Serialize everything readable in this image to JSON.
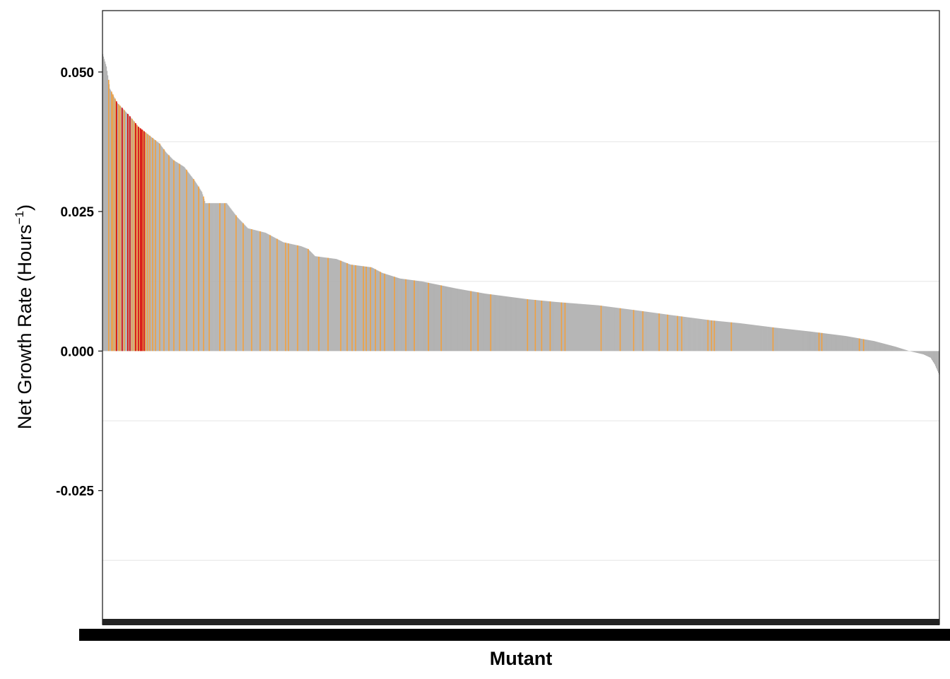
{
  "chart_data": {
    "type": "bar",
    "title": "",
    "xlabel": "Mutant",
    "ylabel": {
      "text": "Net Growth Rate (Hours",
      "superscript": "−1",
      "close": ")"
    },
    "ylim": [
      -0.049,
      0.061
    ],
    "yticks": [
      0.05,
      0.025,
      0.0,
      -0.025
    ],
    "ytick_labels": [
      "0.050",
      "0.025",
      "0.000",
      "-0.025"
    ],
    "grid": {
      "major_y": [
        0.05,
        0.025,
        0.0,
        -0.025
      ],
      "minor_y": [
        0.0375,
        0.0125,
        -0.0125,
        -0.0375
      ]
    },
    "sorted": "descending",
    "n_bars": 1183,
    "value_profile": [
      [
        0,
        0.0532
      ],
      [
        5,
        0.051
      ],
      [
        10,
        0.047
      ],
      [
        20,
        0.0445
      ],
      [
        30,
        0.0432
      ],
      [
        40,
        0.0418
      ],
      [
        50,
        0.0402
      ],
      [
        60,
        0.0392
      ],
      [
        70,
        0.0382
      ],
      [
        80,
        0.0372
      ],
      [
        90,
        0.0355
      ],
      [
        100,
        0.0342
      ],
      [
        115,
        0.033
      ],
      [
        130,
        0.0305
      ],
      [
        140,
        0.0285
      ],
      [
        145,
        0.0265
      ],
      [
        175,
        0.0265
      ],
      [
        190,
        0.024
      ],
      [
        205,
        0.022
      ],
      [
        230,
        0.0212
      ],
      [
        255,
        0.0195
      ],
      [
        280,
        0.0188
      ],
      [
        290,
        0.0183
      ],
      [
        300,
        0.017
      ],
      [
        330,
        0.0165
      ],
      [
        350,
        0.0155
      ],
      [
        380,
        0.015
      ],
      [
        395,
        0.014
      ],
      [
        420,
        0.013
      ],
      [
        450,
        0.0125
      ],
      [
        500,
        0.0112
      ],
      [
        540,
        0.0103
      ],
      [
        600,
        0.0093
      ],
      [
        640,
        0.0088
      ],
      [
        700,
        0.0082
      ],
      [
        760,
        0.0072
      ],
      [
        800,
        0.0065
      ],
      [
        860,
        0.0055
      ],
      [
        900,
        0.005
      ],
      [
        950,
        0.0042
      ],
      [
        1000,
        0.0035
      ],
      [
        1050,
        0.0027
      ],
      [
        1090,
        0.0018
      ],
      [
        1120,
        0.0008
      ],
      [
        1140,
        0.0
      ],
      [
        1160,
        -0.0006
      ],
      [
        1170,
        -0.0012
      ],
      [
        1176,
        -0.0024
      ],
      [
        1183,
        -0.0045
      ]
    ],
    "categories_colors": {
      "default": "#b3b3b3",
      "highlight": "#f0a040",
      "significant": "#dd0000"
    },
    "significant_indices": [
      19,
      27,
      35,
      38,
      46,
      50,
      53,
      55,
      58
    ],
    "highlight_indices": [
      8,
      12,
      14,
      17,
      22,
      24,
      30,
      41,
      44,
      48,
      52,
      56,
      60,
      63,
      66,
      70,
      74,
      80,
      86,
      93,
      100,
      108,
      118,
      128,
      135,
      142,
      150,
      165,
      172,
      188,
      198,
      210,
      222,
      236,
      246,
      258,
      262,
      275,
      290,
      305,
      318,
      336,
      345,
      352,
      357,
      368,
      372,
      378,
      385,
      392,
      398,
      412,
      428,
      440,
      460,
      478,
      520,
      530,
      548,
      600,
      611,
      620,
      632,
      648,
      653,
      704,
      731,
      750,
      763,
      786,
      798,
      812,
      818,
      855,
      860,
      864,
      888,
      947,
      1012,
      1016,
      1069,
      1075
    ]
  }
}
